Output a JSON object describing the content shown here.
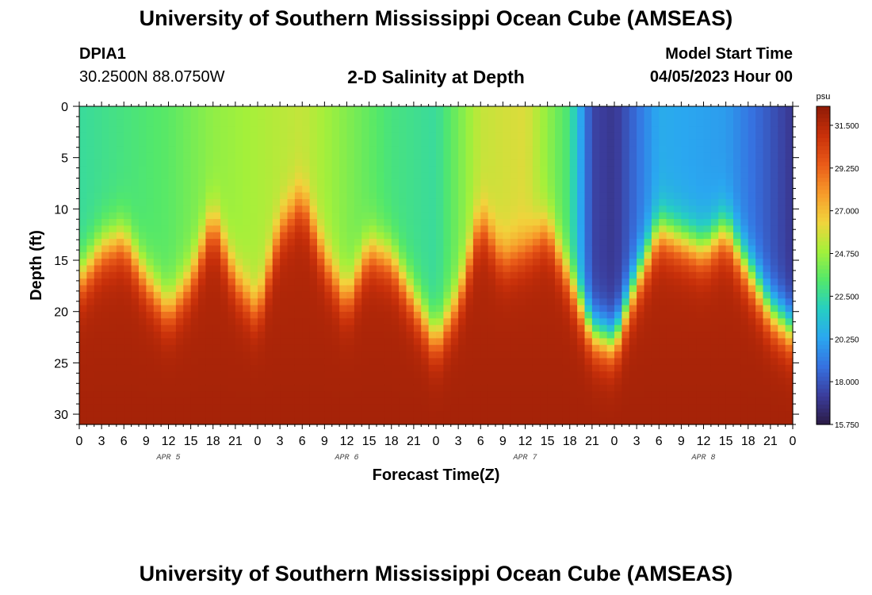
{
  "header": {
    "title": "University of Southern Mississippi Ocean Cube (AMSEAS)",
    "station": "DPIA1",
    "coordinates": "30.2500N  88.0750W",
    "subtitle": "2-D Salinity at Depth",
    "model_start_label": "Model Start Time",
    "model_start_value": "04/05/2023 Hour 00"
  },
  "footer": {
    "title": "University of Southern Mississippi Ocean Cube (AMSEAS)"
  },
  "chart_data": {
    "type": "heatmap",
    "title": "2-D Salinity at Depth",
    "xlabel": "Forecast Time(Z)",
    "ylabel": "Depth (ft)",
    "x_tick_labels": [
      "0",
      "3",
      "6",
      "9",
      "12",
      "15",
      "18",
      "21",
      "0",
      "3",
      "6",
      "9",
      "12",
      "15",
      "18",
      "21",
      "0",
      "3",
      "6",
      "9",
      "12",
      "15",
      "18",
      "21",
      "0",
      "3",
      "6",
      "9",
      "12",
      "15",
      "18",
      "21",
      "0"
    ],
    "date_labels": [
      "APR 5",
      "APR 6",
      "APR 7",
      "APR 8"
    ],
    "x_range_hours": [
      0,
      96
    ],
    "y_tick_labels": [
      "0",
      "5",
      "10",
      "15",
      "20",
      "25",
      "30"
    ],
    "y_range_ft": [
      0,
      31
    ],
    "colorbar": {
      "unit": "psu",
      "range": [
        15.75,
        32.5
      ],
      "tick_labels": [
        "31.500",
        "29.250",
        "27.000",
        "24.750",
        "22.500",
        "20.250",
        "18.000",
        "15.750"
      ],
      "tick_values": [
        31.5,
        29.25,
        27.0,
        24.75,
        22.5,
        20.25,
        18.0,
        15.75
      ],
      "colors": [
        "#2b1b45",
        "#3b3d9c",
        "#3671e0",
        "#2aa7f0",
        "#26cfc2",
        "#53e86a",
        "#a5f03a",
        "#f2d33c",
        "#f79a2a",
        "#e95a18",
        "#c8300a",
        "#8e1a06"
      ]
    },
    "halocline_depth_ft": [
      {
        "hour": 0,
        "depth": 17
      },
      {
        "hour": 3,
        "depth": 14
      },
      {
        "hour": 6,
        "depth": 13
      },
      {
        "hour": 9,
        "depth": 17
      },
      {
        "hour": 12,
        "depth": 20
      },
      {
        "hour": 15,
        "depth": 17
      },
      {
        "hour": 18,
        "depth": 11
      },
      {
        "hour": 21,
        "depth": 17
      },
      {
        "hour": 24,
        "depth": 20
      },
      {
        "hour": 27,
        "depth": 12
      },
      {
        "hour": 30,
        "depth": 9
      },
      {
        "hour": 33,
        "depth": 15
      },
      {
        "hour": 36,
        "depth": 19
      },
      {
        "hour": 39,
        "depth": 14
      },
      {
        "hour": 42,
        "depth": 15
      },
      {
        "hour": 45,
        "depth": 19
      },
      {
        "hour": 48,
        "depth": 23
      },
      {
        "hour": 51,
        "depth": 19
      },
      {
        "hour": 54,
        "depth": 11
      },
      {
        "hour": 57,
        "depth": 15
      },
      {
        "hour": 60,
        "depth": 14
      },
      {
        "hour": 63,
        "depth": 12
      },
      {
        "hour": 66,
        "depth": 17
      },
      {
        "hour": 69,
        "depth": 22
      },
      {
        "hour": 72,
        "depth": 23
      },
      {
        "hour": 75,
        "depth": 17
      },
      {
        "hour": 78,
        "depth": 12
      },
      {
        "hour": 81,
        "depth": 13
      },
      {
        "hour": 84,
        "depth": 14
      },
      {
        "hour": 87,
        "depth": 12
      },
      {
        "hour": 90,
        "depth": 16
      },
      {
        "hour": 93,
        "depth": 20
      },
      {
        "hour": 96,
        "depth": 22
      }
    ],
    "surface_salinity_psu": [
      {
        "hour": 0,
        "value": 22.5
      },
      {
        "hour": 12,
        "value": 23.5
      },
      {
        "hour": 18,
        "value": 24.5
      },
      {
        "hour": 30,
        "value": 25.5
      },
      {
        "hour": 42,
        "value": 23.0
      },
      {
        "hour": 48,
        "value": 22.5
      },
      {
        "hour": 54,
        "value": 25.5
      },
      {
        "hour": 60,
        "value": 26.0
      },
      {
        "hour": 66,
        "value": 23.0
      },
      {
        "hour": 69,
        "value": 17.5
      },
      {
        "hour": 72,
        "value": 17.0
      },
      {
        "hour": 78,
        "value": 20.5
      },
      {
        "hour": 87,
        "value": 20.0
      },
      {
        "hour": 96,
        "value": 17.0
      }
    ],
    "bottom_salinity_psu": 31.3
  }
}
